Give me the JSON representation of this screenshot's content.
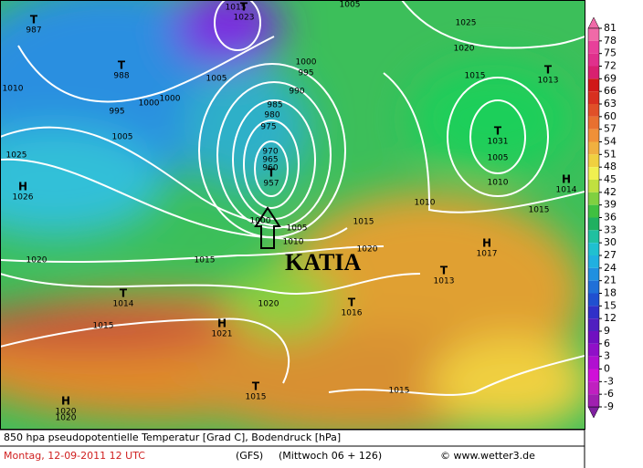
{
  "annotation": "KATIA",
  "footer": {
    "title": "850 hpa pseudopotentielle Temperatur [Grad C], Bodendruck [hPa]",
    "date": "Montag, 12-09-2011   12 UTC",
    "model": "(GFS)",
    "forecast": "(Mittwoch 06 + 126)",
    "credit": "© www.wetter3.de"
  },
  "colorbar": {
    "ticks": [
      81,
      78,
      75,
      72,
      69,
      66,
      63,
      60,
      57,
      54,
      51,
      48,
      45,
      42,
      39,
      36,
      33,
      30,
      27,
      24,
      21,
      18,
      15,
      12,
      9,
      6,
      3,
      0,
      -3,
      -6,
      -9
    ],
    "colors": [
      "#f06aa8",
      "#e8409a",
      "#e0308c",
      "#d82070",
      "#d01818",
      "#d83020",
      "#e05028",
      "#e87030",
      "#f09038",
      "#f0b040",
      "#f0d040",
      "#f0f050",
      "#c0e040",
      "#80d040",
      "#40c040",
      "#20b060",
      "#20c0a0",
      "#20c0d0",
      "#20b0e0",
      "#2090e0",
      "#2070d8",
      "#2050d0",
      "#3030c8",
      "#5020c0",
      "#7010c0",
      "#9010c8",
      "#b010d0",
      "#d010d8",
      "#c020c0",
      "#a020b0",
      "#8020a0"
    ]
  },
  "centers": [
    {
      "kind": "T",
      "label": "987"
    },
    {
      "kind": "T",
      "label": "988"
    },
    {
      "kind": "T",
      "label": "1023"
    },
    {
      "kind": "H",
      "label": "1026"
    },
    {
      "kind": "T",
      "label": "957"
    },
    {
      "kind": "T",
      "label": "1031"
    },
    {
      "kind": "T",
      "label": "1013"
    },
    {
      "kind": "H",
      "label": "1014"
    },
    {
      "kind": "H",
      "label": "1017"
    },
    {
      "kind": "T",
      "label": "1013"
    },
    {
      "kind": "T",
      "label": "1014"
    },
    {
      "kind": "H",
      "label": "1021"
    },
    {
      "kind": "T",
      "label": "1016"
    },
    {
      "kind": "T",
      "label": "1015"
    },
    {
      "kind": "H",
      "label": "1020"
    }
  ],
  "isobar_labels": [
    "1015",
    "1005",
    "1025",
    "1020",
    "1015",
    "1010",
    "995",
    "1000",
    "1000",
    "1005",
    "1000",
    "995",
    "990",
    "985",
    "980",
    "975",
    "970",
    "965",
    "960",
    "1005",
    "1025",
    "1005",
    "1010",
    "1010",
    "1015",
    "1015",
    "1005",
    "1010",
    "1020",
    "1020",
    "1015",
    "1000",
    "1020",
    "1015",
    "1015",
    "1020"
  ]
}
